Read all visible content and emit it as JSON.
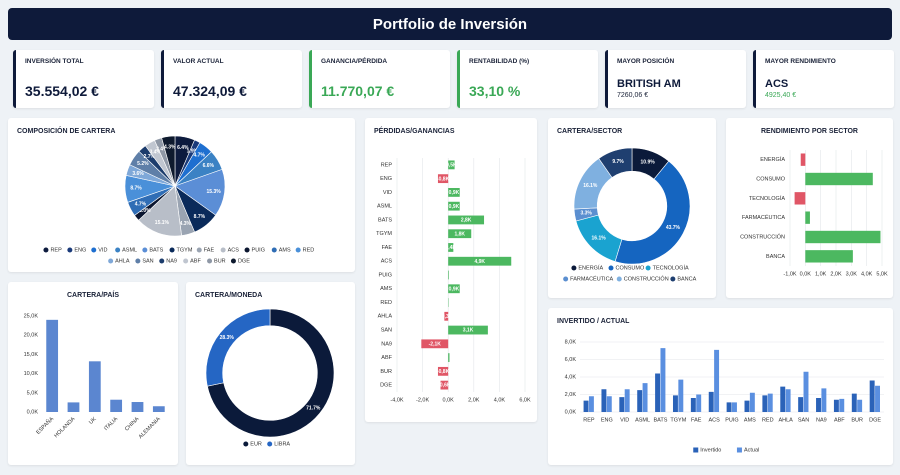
{
  "header": {
    "title": "Portfolio de Inversión"
  },
  "kpis": [
    {
      "label": "INVERSIÓN TOTAL",
      "value": "35.554,02 €"
    },
    {
      "label": "VALOR ACTUAL",
      "value": "47.324,09 €"
    },
    {
      "label": "GANANCIA/PÉRDIDA",
      "value": "11.770,07 €"
    },
    {
      "label": "RENTABILIDAD (%)",
      "value": "33,10 %"
    },
    {
      "label": "MAYOR POSICIÓN",
      "value": "BRITISH AM",
      "detail": "7260,06 €"
    },
    {
      "label": "MAYOR RENDIMIENTO",
      "value": "ACS",
      "detail": "4925,40 €"
    }
  ],
  "chart_data": [
    {
      "type": "pie",
      "title": "COMPOSICIÓN DE CARTERA",
      "categories": [
        "REP",
        "ENG",
        "VID",
        "ASML",
        "BATS",
        "TGYM",
        "FAE",
        "ACS",
        "PUIG",
        "AMS",
        "RED",
        "AHLA",
        "SAN",
        "NA9",
        "ABF",
        "BUR",
        "DGE"
      ],
      "values": [
        6.4,
        1.9,
        4.7,
        6.6,
        15.3,
        8.7,
        4.3,
        15.1,
        2.0,
        4.7,
        8.7,
        3.6,
        5.2,
        2.7,
        3.4,
        2.4,
        4.3
      ],
      "value_labels": [
        "6.4%",
        "1.9%",
        "4.7%",
        "6.6%",
        "15.3%",
        "8.7%",
        "4.3%",
        "15.1%",
        "2.0%",
        "4.7%",
        "8.7%",
        "3.6%",
        "5.2%",
        "2.7%",
        "3.4%",
        "2.4%",
        "4.3%"
      ],
      "colors": [
        "#0d1b3e",
        "#1a3a7a",
        "#1e6fd0",
        "#3b82c4",
        "#5b8ed6",
        "#0a2a5a",
        "#9aa4b2",
        "#b8bec8",
        "#0b1630",
        "#2f6db5",
        "#4a90d9",
        "#7fa8d8",
        "#5f7fa8",
        "#1c3c6c",
        "#c0c6d0",
        "#8f98a6",
        "#0e1a2e"
      ],
      "hole": 0
    },
    {
      "type": "bar",
      "orientation": "horizontal",
      "title": "PÉRDIDAS/GANANCIAS",
      "categories": [
        "REP",
        "ENG",
        "VID",
        "ASML",
        "BATS",
        "TGYM",
        "FAE",
        "ACS",
        "PUIG",
        "AMS",
        "RED",
        "AHLA",
        "SAN",
        "NA9",
        "ABF",
        "BUR",
        "DGE"
      ],
      "values": [
        500,
        -800,
        900,
        900,
        2800,
        1800,
        400,
        4925.4,
        50,
        900,
        30,
        -300,
        3100,
        -2100,
        100,
        -800,
        -600
      ],
      "value_labels": [
        "0,5K",
        "-0,8K",
        "0,9K",
        "0,9K",
        "2,8K",
        "1,8K",
        "0,4K",
        "4,9K",
        null,
        "0,9K",
        null,
        "-0,3K",
        "3,1K",
        "-2,1K",
        null,
        "-0,8K",
        "-0,6K"
      ],
      "positive_color": "#4cb860",
      "negative_color": "#e05666",
      "xlim": [
        -4000,
        6000
      ],
      "xticks": [
        {
          "value": -4000,
          "label": "-4,0K"
        },
        {
          "value": -2000,
          "label": "-2,0K"
        },
        {
          "value": 0,
          "label": "0,0K"
        },
        {
          "value": 2000,
          "label": "2,0K"
        },
        {
          "value": 4000,
          "label": "4,0K"
        },
        {
          "value": 6000,
          "label": "6,0K"
        }
      ],
      "grid": true
    },
    {
      "type": "pie",
      "title": "CARTERA/SECTOR",
      "categories": [
        "ENERGÍA",
        "CONSUMO",
        "TECNOLOGÍA",
        "FARMACÉUTICA",
        "CONSTRUCCIÓN",
        "BANCA"
      ],
      "values": [
        10.9,
        43.7,
        16.1,
        3.3,
        16.1,
        9.7
      ],
      "value_labels": [
        "10.9%",
        "43.7%",
        "16.1%",
        "3.3%",
        "16.1%",
        "9.7%"
      ],
      "colors": [
        "#0b1a3a",
        "#1565c0",
        "#1aa3d0",
        "#5b8fd0",
        "#7fb0e0",
        "#1f3f70"
      ],
      "hole": 0.6
    },
    {
      "type": "bar",
      "orientation": "horizontal",
      "title": "RENDIMIENTO POR SECTOR",
      "categories": [
        "ENERGÍA",
        "CONSUMO",
        "TECNOLOGÍA",
        "FARMACÉUTICA",
        "CONSTRUCCIÓN",
        "BANCA"
      ],
      "values": [
        -300,
        4400,
        -700,
        300,
        4900,
        3100
      ],
      "positive_color": "#4cb860",
      "negative_color": "#e05666",
      "xlim": [
        -1000,
        5000
      ],
      "xticks": [
        {
          "value": -1000,
          "label": "-1,0K"
        },
        {
          "value": 0,
          "label": "0,0K"
        },
        {
          "value": 1000,
          "label": "1,0K"
        },
        {
          "value": 2000,
          "label": "2,0K"
        },
        {
          "value": 3000,
          "label": "3,0K"
        },
        {
          "value": 4000,
          "label": "4,0K"
        },
        {
          "value": 5000,
          "label": "5,0K"
        }
      ],
      "grid": true
    },
    {
      "type": "bar",
      "orientation": "vertical",
      "title": "CARTERA/PAÍS",
      "categories": [
        "ESPAÑA",
        "HOLANDA",
        "UK",
        "ITALIA",
        "CHINA",
        "ALEMANIA"
      ],
      "values": [
        24000,
        2500,
        13200,
        3200,
        2600,
        1500
      ],
      "color": "#5b86d0",
      "ylim": [
        0,
        25000
      ],
      "yticks": [
        {
          "value": 0,
          "label": "0,0K"
        },
        {
          "value": 5000,
          "label": "5,0K"
        },
        {
          "value": 10000,
          "label": "10,0K"
        },
        {
          "value": 15000,
          "label": "15,0K"
        },
        {
          "value": 20000,
          "label": "20,0K"
        },
        {
          "value": 25000,
          "label": "25,0K"
        }
      ]
    },
    {
      "type": "pie",
      "title": "CARTERA/MONEDA",
      "categories": [
        "EUR",
        "LIBRA"
      ],
      "values": [
        71.7,
        28.3
      ],
      "value_labels": [
        "71.7%",
        "28.3%"
      ],
      "colors": [
        "#0b1a3a",
        "#2566c4"
      ],
      "hole": 0.74
    },
    {
      "type": "bar",
      "orientation": "vertical",
      "title": "INVERTIDO / ACTUAL",
      "categories": [
        "REP",
        "ENG",
        "VID",
        "ASML",
        "BATS",
        "TGYM",
        "FAE",
        "ACS",
        "PUIG",
        "AMS",
        "RED",
        "AHLA",
        "SAN",
        "NA9",
        "ABF",
        "BUR",
        "DGE"
      ],
      "series": [
        {
          "name": "Invertido",
          "color": "#2a62b8",
          "values": [
            1300,
            2600,
            1700,
            2500,
            4400,
            1900,
            1600,
            2300,
            1100,
            1300,
            1900,
            2900,
            1700,
            1600,
            1400,
            2100,
            3600
          ]
        },
        {
          "name": "Actual",
          "color": "#5a8fe0",
          "values": [
            1800,
            1800,
            2600,
            3300,
            7300,
            3700,
            2000,
            7100,
            1100,
            2200,
            2100,
            2600,
            4600,
            2700,
            1500,
            1400,
            3000
          ]
        }
      ],
      "ylim": [
        0,
        8000
      ],
      "yticks": [
        {
          "value": 0,
          "label": "0,0K"
        },
        {
          "value": 2000,
          "label": "2,0K"
        },
        {
          "value": 4000,
          "label": "4,0K"
        },
        {
          "value": 6000,
          "label": "6,0K"
        },
        {
          "value": 8000,
          "label": "8,0K"
        }
      ],
      "grid": true
    }
  ]
}
